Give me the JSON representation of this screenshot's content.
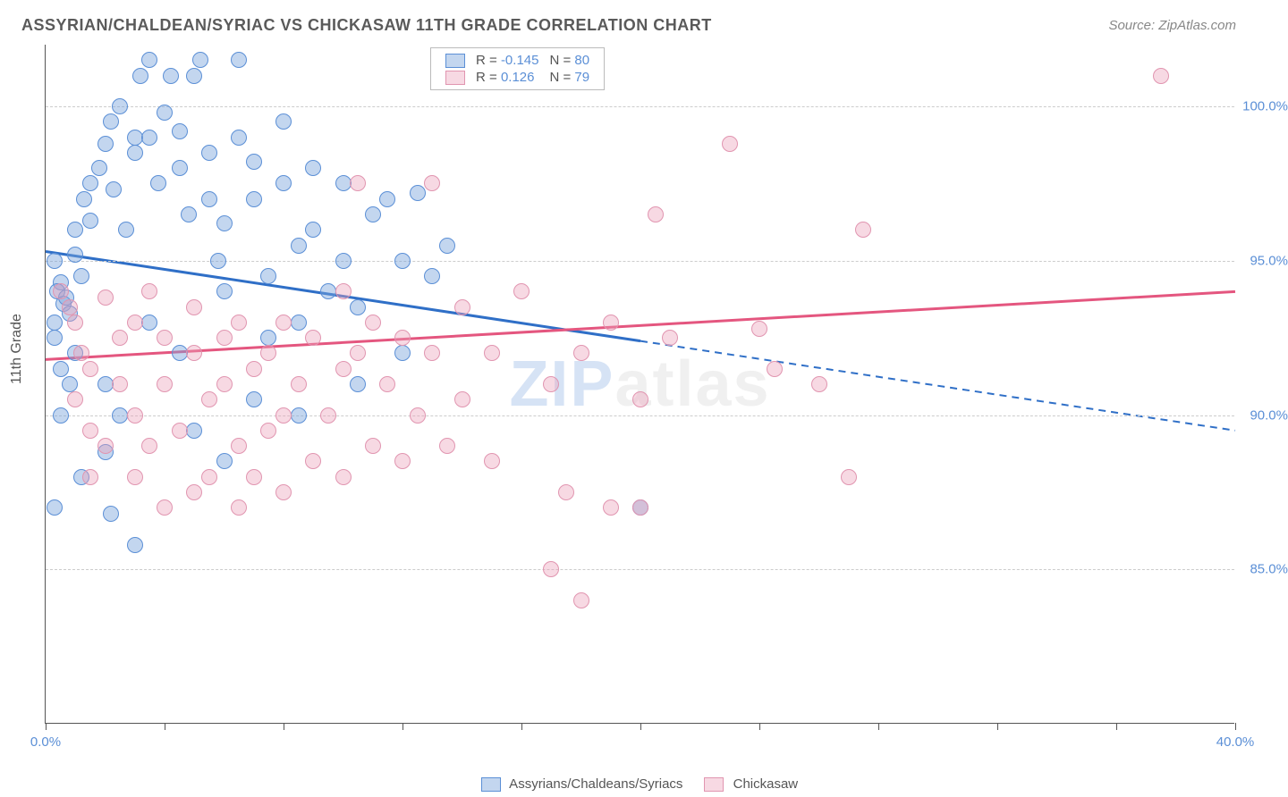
{
  "title": "ASSYRIAN/CHALDEAN/SYRIAC VS CHICKASAW 11TH GRADE CORRELATION CHART",
  "source": "Source: ZipAtlas.com",
  "ylabel": "11th Grade",
  "watermark_a": "ZIP",
  "watermark_b": "atlas",
  "chart": {
    "type": "scatter",
    "xlim": [
      0,
      40
    ],
    "ylim": [
      80,
      102
    ],
    "yticks": [
      85.0,
      90.0,
      95.0,
      100.0
    ],
    "ytick_labels": [
      "85.0%",
      "90.0%",
      "95.0%",
      "100.0%"
    ],
    "xticks": [
      0,
      4,
      8,
      12,
      16,
      20,
      24,
      28,
      32,
      36,
      40
    ],
    "xtick_labels": {
      "0": "0.0%",
      "40": "40.0%"
    },
    "background_color": "#ffffff",
    "grid_color": "#cccccc",
    "marker_radius": 9,
    "series": [
      {
        "name": "Assyrians/Chaldeans/Syriacs",
        "color_fill": "rgba(121,163,220,0.45)",
        "color_stroke": "#5b8fd6",
        "R": "-0.145",
        "N": "80",
        "trend": {
          "x1": 0,
          "y1": 95.3,
          "x2": 40,
          "y2": 89.5,
          "solid_until_x": 20,
          "color": "#2f6fc7",
          "width": 3
        },
        "points": [
          [
            0.3,
            95.0
          ],
          [
            0.5,
            94.3
          ],
          [
            0.4,
            94.0
          ],
          [
            0.6,
            93.6
          ],
          [
            0.8,
            93.3
          ],
          [
            0.3,
            93.0
          ],
          [
            0.5,
            91.5
          ],
          [
            0.7,
            93.8
          ],
          [
            1.0,
            95.2
          ],
          [
            1.2,
            94.5
          ],
          [
            1.0,
            96.0
          ],
          [
            1.3,
            97.0
          ],
          [
            1.5,
            97.5
          ],
          [
            1.5,
            96.3
          ],
          [
            1.8,
            98.0
          ],
          [
            2.0,
            98.8
          ],
          [
            2.2,
            99.5
          ],
          [
            2.5,
            100.0
          ],
          [
            2.3,
            97.3
          ],
          [
            2.7,
            96.0
          ],
          [
            3.0,
            98.5
          ],
          [
            3.0,
            99.0
          ],
          [
            3.2,
            101.0
          ],
          [
            3.5,
            101.5
          ],
          [
            3.5,
            99.0
          ],
          [
            3.8,
            97.5
          ],
          [
            4.0,
            99.8
          ],
          [
            4.2,
            101.0
          ],
          [
            4.5,
            99.2
          ],
          [
            4.5,
            98.0
          ],
          [
            4.8,
            96.5
          ],
          [
            5.0,
            101.0
          ],
          [
            5.2,
            101.5
          ],
          [
            5.5,
            98.5
          ],
          [
            5.5,
            97.0
          ],
          [
            5.8,
            95.0
          ],
          [
            6.0,
            96.2
          ],
          [
            6.0,
            94.0
          ],
          [
            6.5,
            101.5
          ],
          [
            6.5,
            99.0
          ],
          [
            7.0,
            98.2
          ],
          [
            7.0,
            97.0
          ],
          [
            7.5,
            94.5
          ],
          [
            7.5,
            92.5
          ],
          [
            8.0,
            99.5
          ],
          [
            8.0,
            97.5
          ],
          [
            8.5,
            95.5
          ],
          [
            8.5,
            93.0
          ],
          [
            9.0,
            98.0
          ],
          [
            9.0,
            96.0
          ],
          [
            9.5,
            94.0
          ],
          [
            10.0,
            97.5
          ],
          [
            10.0,
            95.0
          ],
          [
            10.5,
            93.5
          ],
          [
            10.5,
            91.0
          ],
          [
            11.0,
            96.5
          ],
          [
            11.5,
            97.0
          ],
          [
            12.0,
            95.0
          ],
          [
            12.0,
            92.0
          ],
          [
            12.5,
            97.2
          ],
          [
            13.0,
            94.5
          ],
          [
            13.5,
            95.5
          ],
          [
            1.0,
            92.0
          ],
          [
            2.0,
            91.0
          ],
          [
            2.5,
            90.0
          ],
          [
            2.0,
            88.8
          ],
          [
            3.0,
            85.8
          ],
          [
            0.3,
            87.0
          ],
          [
            2.2,
            86.8
          ],
          [
            5.0,
            89.5
          ],
          [
            6.0,
            88.5
          ],
          [
            0.5,
            90.0
          ],
          [
            1.2,
            88.0
          ],
          [
            0.3,
            92.5
          ],
          [
            0.8,
            91.0
          ],
          [
            3.5,
            93.0
          ],
          [
            4.5,
            92.0
          ],
          [
            20.0,
            87.0
          ],
          [
            8.5,
            90.0
          ],
          [
            7.0,
            90.5
          ]
        ]
      },
      {
        "name": "Chickasaw",
        "color_fill": "rgba(234,160,185,0.40)",
        "color_stroke": "#e195b0",
        "R": "0.126",
        "N": "79",
        "trend": {
          "x1": 0,
          "y1": 91.8,
          "x2": 40,
          "y2": 94.0,
          "solid_until_x": 40,
          "color": "#e4567f",
          "width": 3
        },
        "points": [
          [
            0.5,
            94.0
          ],
          [
            0.8,
            93.5
          ],
          [
            1.0,
            93.0
          ],
          [
            1.2,
            92.0
          ],
          [
            1.5,
            91.5
          ],
          [
            1.0,
            90.5
          ],
          [
            1.5,
            89.5
          ],
          [
            2.0,
            93.8
          ],
          [
            2.5,
            92.5
          ],
          [
            2.5,
            91.0
          ],
          [
            3.0,
            93.0
          ],
          [
            3.0,
            90.0
          ],
          [
            3.5,
            89.0
          ],
          [
            3.5,
            94.0
          ],
          [
            4.0,
            92.5
          ],
          [
            4.0,
            91.0
          ],
          [
            4.5,
            89.5
          ],
          [
            5.0,
            93.5
          ],
          [
            5.0,
            92.0
          ],
          [
            5.5,
            90.5
          ],
          [
            5.5,
            88.0
          ],
          [
            6.0,
            92.5
          ],
          [
            6.0,
            91.0
          ],
          [
            6.5,
            93.0
          ],
          [
            6.5,
            89.0
          ],
          [
            7.0,
            91.5
          ],
          [
            7.0,
            88.0
          ],
          [
            7.5,
            92.0
          ],
          [
            7.5,
            89.5
          ],
          [
            8.0,
            93.0
          ],
          [
            8.0,
            90.0
          ],
          [
            8.5,
            91.0
          ],
          [
            9.0,
            92.5
          ],
          [
            9.0,
            88.5
          ],
          [
            9.5,
            90.0
          ],
          [
            10.0,
            94.0
          ],
          [
            10.0,
            91.5
          ],
          [
            10.0,
            88.0
          ],
          [
            10.5,
            92.0
          ],
          [
            11.0,
            93.0
          ],
          [
            11.0,
            89.0
          ],
          [
            11.5,
            91.0
          ],
          [
            12.0,
            92.5
          ],
          [
            12.0,
            88.5
          ],
          [
            12.5,
            90.0
          ],
          [
            13.0,
            97.5
          ],
          [
            13.0,
            92.0
          ],
          [
            13.5,
            89.0
          ],
          [
            14.0,
            93.5
          ],
          [
            14.0,
            90.5
          ],
          [
            15.0,
            92.0
          ],
          [
            15.0,
            88.5
          ],
          [
            16.0,
            94.0
          ],
          [
            17.0,
            91.0
          ],
          [
            17.0,
            85.0
          ],
          [
            17.5,
            87.5
          ],
          [
            18.0,
            92.0
          ],
          [
            18.0,
            84.0
          ],
          [
            19.0,
            93.0
          ],
          [
            19.0,
            87.0
          ],
          [
            20.0,
            90.5
          ],
          [
            20.0,
            87.0
          ],
          [
            20.5,
            96.5
          ],
          [
            21.0,
            92.5
          ],
          [
            23.0,
            98.8
          ],
          [
            24.0,
            92.8
          ],
          [
            24.5,
            91.5
          ],
          [
            26.0,
            91.0
          ],
          [
            27.0,
            88.0
          ],
          [
            27.5,
            96.0
          ],
          [
            3.0,
            88.0
          ],
          [
            4.0,
            87.0
          ],
          [
            5.0,
            87.5
          ],
          [
            6.5,
            87.0
          ],
          [
            8.0,
            87.5
          ],
          [
            2.0,
            89.0
          ],
          [
            1.5,
            88.0
          ],
          [
            37.5,
            101.0
          ],
          [
            10.5,
            97.5
          ]
        ]
      }
    ]
  },
  "legend_bottom": [
    {
      "swatch_fill": "rgba(121,163,220,0.45)",
      "swatch_stroke": "#5b8fd6",
      "label": "Assyrians/Chaldeans/Syriacs"
    },
    {
      "swatch_fill": "rgba(234,160,185,0.40)",
      "swatch_stroke": "#e195b0",
      "label": "Chickasaw"
    }
  ]
}
